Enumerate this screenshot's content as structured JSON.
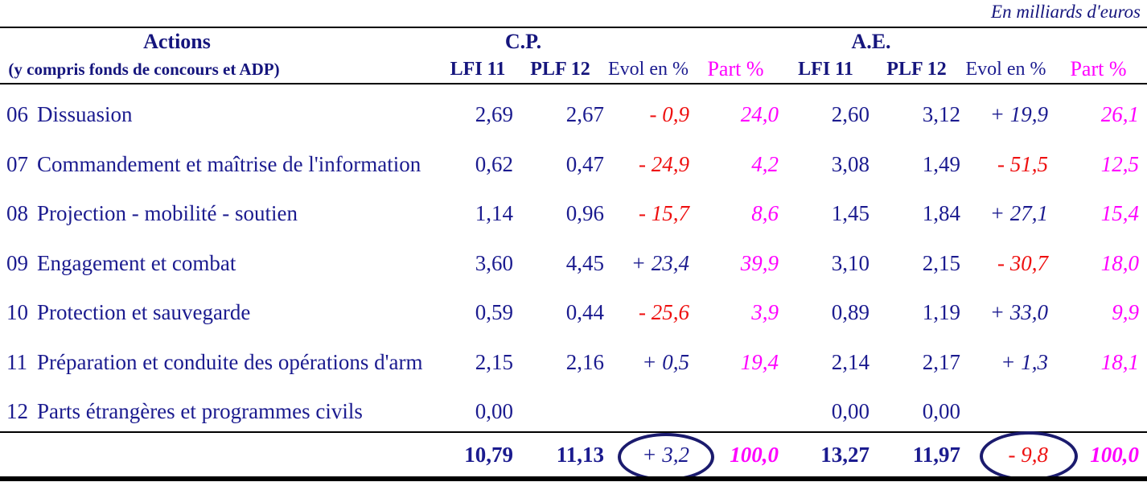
{
  "caption": "En milliards d'euros",
  "header": {
    "actions_title": "Actions",
    "actions_subtitle": "(y compris fonds de concours et ADP)",
    "group_cp": "C.P.",
    "group_ae": "A.E.",
    "col_lfi": "LFI 11",
    "col_plf": "PLF 12",
    "col_evol": "Evol en %",
    "col_part": "Part %"
  },
  "colors": {
    "navy_text": "#1b1b8f",
    "negative_red": "#ee1010",
    "part_magenta": "#ff00ff",
    "rule_black": "#000000",
    "circle_navy": "#1b1b6e"
  },
  "rows": [
    {
      "code": "06",
      "label": "Dissuasion",
      "cp": {
        "lfi": "2,69",
        "plf": "2,67",
        "evol": "- 0,9",
        "part": "24,0"
      },
      "ae": {
        "lfi": "2,60",
        "plf": "3,12",
        "evol": "+ 19,9",
        "part": "26,1"
      }
    },
    {
      "code": "07",
      "label": "Commandement et maîtrise de l'information",
      "cp": {
        "lfi": "0,62",
        "plf": "0,47",
        "evol": "- 24,9",
        "part": "4,2"
      },
      "ae": {
        "lfi": "3,08",
        "plf": "1,49",
        "evol": "- 51,5",
        "part": "12,5"
      }
    },
    {
      "code": "08",
      "label": "Projection - mobilité - soutien",
      "cp": {
        "lfi": "1,14",
        "plf": "0,96",
        "evol": "- 15,7",
        "part": "8,6"
      },
      "ae": {
        "lfi": "1,45",
        "plf": "1,84",
        "evol": "+ 27,1",
        "part": "15,4"
      }
    },
    {
      "code": "09",
      "label": "Engagement et combat",
      "cp": {
        "lfi": "3,60",
        "plf": "4,45",
        "evol": "+ 23,4",
        "part": "39,9"
      },
      "ae": {
        "lfi": "3,10",
        "plf": "2,15",
        "evol": "- 30,7",
        "part": "18,0"
      }
    },
    {
      "code": "10",
      "label": "Protection et sauvegarde",
      "cp": {
        "lfi": "0,59",
        "plf": "0,44",
        "evol": "- 25,6",
        "part": "3,9"
      },
      "ae": {
        "lfi": "0,89",
        "plf": "1,19",
        "evol": "+ 33,0",
        "part": "9,9"
      }
    },
    {
      "code": "11",
      "label": "Préparation et conduite des opérations d'arm",
      "cp": {
        "lfi": "2,15",
        "plf": "2,16",
        "evol": "+ 0,5",
        "part": "19,4"
      },
      "ae": {
        "lfi": "2,14",
        "plf": "2,17",
        "evol": "+ 1,3",
        "part": "18,1"
      }
    },
    {
      "code": "12",
      "label": "Parts étrangères et programmes civils",
      "cp": {
        "lfi": "0,00",
        "plf": "",
        "evol": "",
        "part": ""
      },
      "ae": {
        "lfi": "0,00",
        "plf": "0,00",
        "evol": "",
        "part": ""
      }
    }
  ],
  "total": {
    "cp": {
      "lfi": "10,79",
      "plf": "11,13",
      "evol": "+ 3,2",
      "part": "100,0"
    },
    "ae": {
      "lfi": "13,27",
      "plf": "11,97",
      "evol": "- 9,8",
      "part": "100,0"
    }
  }
}
